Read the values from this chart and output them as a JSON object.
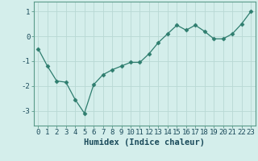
{
  "x": [
    0,
    1,
    2,
    3,
    4,
    5,
    6,
    7,
    8,
    9,
    10,
    11,
    12,
    13,
    14,
    15,
    16,
    17,
    18,
    19,
    20,
    21,
    22,
    23
  ],
  "y": [
    -0.5,
    -1.2,
    -1.8,
    -1.85,
    -2.55,
    -3.1,
    -1.95,
    -1.55,
    -1.35,
    -1.2,
    -1.05,
    -1.05,
    -0.7,
    -0.25,
    0.1,
    0.45,
    0.25,
    0.45,
    0.2,
    -0.1,
    -0.1,
    0.1,
    0.5,
    1.0
  ],
  "line_color": "#2e7d6e",
  "marker": "D",
  "marker_size": 2.5,
  "bg_color": "#d4eeeb",
  "grid_color": "#b8d8d4",
  "xlabel": "Humidex (Indice chaleur)",
  "xlabel_fontsize": 7.5,
  "tick_fontsize": 6.5,
  "ylim": [
    -3.6,
    1.4
  ],
  "xlim": [
    -0.5,
    23.5
  ],
  "yticks": [
    -3,
    -2,
    -1,
    0,
    1
  ],
  "xticks": [
    0,
    1,
    2,
    3,
    4,
    5,
    6,
    7,
    8,
    9,
    10,
    11,
    12,
    13,
    14,
    15,
    16,
    17,
    18,
    19,
    20,
    21,
    22,
    23
  ],
  "spine_color": "#5a9a8a",
  "tick_label_color": "#1a4a5a"
}
